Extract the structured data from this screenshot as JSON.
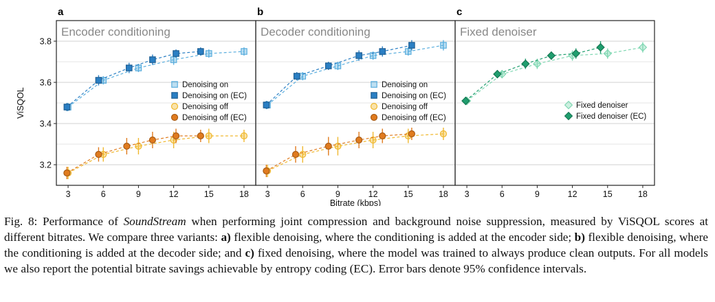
{
  "chart_data": [
    {
      "type": "line",
      "letter": "a",
      "title": "Encoder conditioning",
      "xlabel": "",
      "ylabel": "ViSQOL",
      "xlim": [
        2,
        19
      ],
      "ylim": [
        3.1,
        3.9
      ],
      "xticks": [
        3,
        6,
        9,
        12,
        15,
        18
      ],
      "yticks": [
        3.2,
        3.4,
        3.6,
        3.8
      ],
      "grid": true,
      "legend_position": "center-right",
      "series": [
        {
          "name": "Denoising on",
          "marker": "square",
          "fill": "light",
          "color": "#5aaede",
          "x": [
            3,
            6,
            9,
            12,
            15,
            18
          ],
          "y": [
            3.48,
            3.61,
            3.67,
            3.71,
            3.74,
            3.75
          ],
          "err": [
            0.02,
            0.02,
            0.02,
            0.025,
            0.02,
            0.02
          ]
        },
        {
          "name": "Denoising on (EC)",
          "marker": "square",
          "fill": "dark",
          "color": "#2a7fc4",
          "x": [
            2.9,
            5.6,
            8.2,
            10.2,
            12.2,
            14.3
          ],
          "y": [
            3.48,
            3.61,
            3.67,
            3.71,
            3.74,
            3.75
          ],
          "err": [
            0.02,
            0.025,
            0.025,
            0.025,
            0.02,
            0.02
          ]
        },
        {
          "name": "Denoising off",
          "marker": "circle",
          "fill": "light",
          "color": "#f0b82e",
          "x": [
            3,
            6,
            9,
            12,
            15,
            18
          ],
          "y": [
            3.16,
            3.25,
            3.29,
            3.32,
            3.34,
            3.34
          ],
          "err": [
            0.03,
            0.035,
            0.04,
            0.04,
            0.035,
            0.03
          ]
        },
        {
          "name": "Denoising off (EC)",
          "marker": "circle",
          "fill": "dark",
          "color": "#e07b1e",
          "x": [
            2.9,
            5.6,
            8.0,
            10.2,
            12.2,
            14.3
          ],
          "y": [
            3.16,
            3.25,
            3.29,
            3.32,
            3.34,
            3.34
          ],
          "err": [
            0.03,
            0.035,
            0.04,
            0.04,
            0.035,
            0.03
          ]
        }
      ]
    },
    {
      "type": "line",
      "letter": "b",
      "title": "Decoder conditioning",
      "xlabel": "Bitrate (kbps)",
      "ylabel": "",
      "xlim": [
        2,
        19
      ],
      "ylim": [
        3.1,
        3.9
      ],
      "xticks": [
        3,
        6,
        9,
        12,
        15,
        18
      ],
      "yticks": [
        3.2,
        3.4,
        3.6,
        3.8
      ],
      "grid": true,
      "legend_position": "center-right",
      "series": [
        {
          "name": "Denoising on",
          "marker": "square",
          "fill": "light",
          "color": "#5aaede",
          "x": [
            3,
            6,
            9,
            12,
            15,
            18
          ],
          "y": [
            3.49,
            3.63,
            3.68,
            3.73,
            3.75,
            3.78
          ],
          "err": [
            0.02,
            0.02,
            0.02,
            0.02,
            0.02,
            0.025
          ]
        },
        {
          "name": "Denoising on (EC)",
          "marker": "square",
          "fill": "dark",
          "color": "#2a7fc4",
          "x": [
            2.9,
            5.5,
            8.2,
            10.8,
            12.8,
            15.3
          ],
          "y": [
            3.49,
            3.63,
            3.68,
            3.73,
            3.75,
            3.78
          ],
          "err": [
            0.02,
            0.02,
            0.02,
            0.025,
            0.025,
            0.025
          ]
        },
        {
          "name": "Denoising off",
          "marker": "circle",
          "fill": "light",
          "color": "#f0b82e",
          "x": [
            3,
            6,
            9,
            12,
            15,
            18
          ],
          "y": [
            3.17,
            3.25,
            3.29,
            3.32,
            3.34,
            3.35
          ],
          "err": [
            0.03,
            0.04,
            0.045,
            0.04,
            0.035,
            0.03
          ]
        },
        {
          "name": "Denoising off (EC)",
          "marker": "circle",
          "fill": "dark",
          "color": "#e07b1e",
          "x": [
            2.9,
            5.4,
            8.2,
            10.8,
            12.8,
            15.3
          ],
          "y": [
            3.17,
            3.25,
            3.29,
            3.32,
            3.34,
            3.35
          ],
          "err": [
            0.03,
            0.04,
            0.045,
            0.04,
            0.035,
            0.03
          ]
        }
      ]
    },
    {
      "type": "line",
      "letter": "c",
      "title": "Fixed denoiser",
      "xlabel": "",
      "ylabel": "",
      "xlim": [
        2,
        19
      ],
      "ylim": [
        3.1,
        3.9
      ],
      "xticks": [
        3,
        6,
        9,
        12,
        15,
        18
      ],
      "yticks": [
        3.2,
        3.4,
        3.6,
        3.8
      ],
      "grid": true,
      "legend_position": "lower-right",
      "series": [
        {
          "name": "Fixed denoiser",
          "marker": "diamond",
          "fill": "light",
          "color": "#7fd7b2",
          "x": [
            3,
            6,
            9,
            12,
            15,
            18
          ],
          "y": [
            3.51,
            3.64,
            3.69,
            3.73,
            3.74,
            3.77
          ],
          "err": [
            0.02,
            0.02,
            0.025,
            0.025,
            0.025,
            0.025
          ]
        },
        {
          "name": "Fixed denoiser (EC)",
          "marker": "diamond",
          "fill": "dark",
          "color": "#1f9e6e",
          "x": [
            2.9,
            5.6,
            8.0,
            10.2,
            12.3,
            14.4
          ],
          "y": [
            3.51,
            3.64,
            3.69,
            3.73,
            3.74,
            3.77
          ],
          "err": [
            0.02,
            0.02,
            0.025,
            0.02,
            0.025,
            0.03
          ]
        }
      ]
    }
  ],
  "caption": {
    "fig_label": "Fig. 8: Performance of ",
    "model_name": "SoundStream",
    "part1": " when performing joint compression and background noise suppression, measured by ViSQOL scores at different bitrates. We compare three variants: ",
    "a_label": "a)",
    "a_text": " flexible denoising, where the conditioning is added at the encoder side; ",
    "b_label": "b)",
    "b_text": " flexible denoising, where the conditioning is added at the decoder side; and ",
    "c_label": "c)",
    "c_text": " fixed denoising, where the model was trained to always produce clean outputs. For all models we also report the potential bitrate savings achievable by entropy coding (EC). Error bars denote 95% confidence intervals."
  }
}
